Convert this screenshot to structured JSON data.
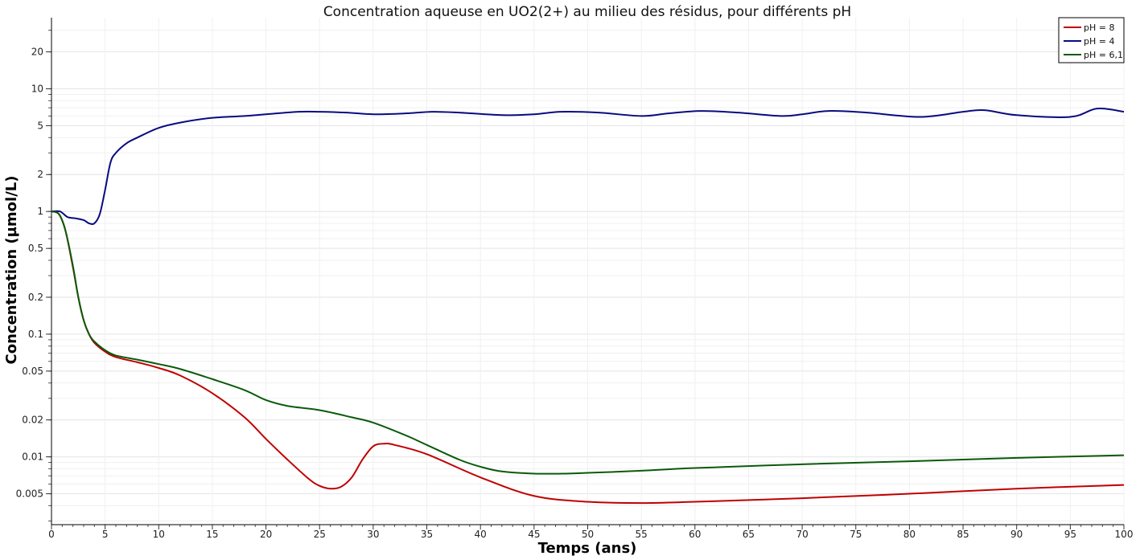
{
  "chart_data": {
    "type": "line",
    "title": "Concentration aqueuse en UO2(2+) au milieu des résidus, pour différents pH",
    "xlabel": "Temps (ans)",
    "ylabel": "Concentration (µmol/L)",
    "xlim": [
      0,
      100
    ],
    "ylim": [
      0.0028,
      38
    ],
    "yscale": "log",
    "grid": true,
    "legend_position": "top-right",
    "x_ticks": [
      0,
      5,
      10,
      15,
      20,
      25,
      30,
      35,
      40,
      45,
      50,
      55,
      60,
      65,
      70,
      75,
      80,
      85,
      90,
      95,
      100
    ],
    "x_tick_labels": [
      "0",
      "5",
      "10",
      "15",
      "20",
      "25",
      "30",
      "35",
      "40",
      "45",
      "50",
      "55",
      "60",
      "65",
      "70",
      "75",
      "80",
      "85",
      "90",
      "95",
      "100"
    ],
    "y_ticks": [
      0.005,
      0.01,
      0.02,
      0.05,
      0.1,
      0.2,
      0.5,
      1,
      2,
      5,
      10,
      20
    ],
    "y_tick_labels": [
      "0.005",
      "0.01",
      "0.02",
      "0.05",
      "0.1",
      "0.2",
      "0.5",
      "1",
      "2",
      "5",
      "10",
      "20"
    ],
    "series": [
      {
        "name": "pH = 8",
        "color": "#c00000",
        "x": [
          0,
          0.7,
          1.3,
          2,
          2.5,
          3,
          3.5,
          4,
          5,
          6,
          8,
          10,
          12,
          15,
          18,
          20,
          22,
          24,
          25,
          26,
          27,
          28,
          29,
          30,
          31,
          32,
          35,
          40,
          45,
          50,
          55,
          60,
          70,
          80,
          90,
          100
        ],
        "y": [
          1.0,
          0.95,
          0.7,
          0.35,
          0.2,
          0.13,
          0.1,
          0.085,
          0.072,
          0.065,
          0.059,
          0.053,
          0.046,
          0.033,
          0.021,
          0.014,
          0.0095,
          0.0066,
          0.0058,
          0.0055,
          0.0057,
          0.0068,
          0.0095,
          0.0122,
          0.0128,
          0.0125,
          0.0105,
          0.0068,
          0.0048,
          0.0043,
          0.0042,
          0.0043,
          0.0046,
          0.005,
          0.0055,
          0.0059
        ]
      },
      {
        "name": "pH = 4",
        "color": "#0a0a80",
        "x": [
          0,
          0.8,
          1.5,
          2.2,
          3,
          3.5,
          4,
          4.5,
          5,
          5.5,
          6,
          7,
          8,
          10,
          12,
          15,
          18,
          20,
          23,
          25,
          27.5,
          30,
          33,
          35.5,
          38,
          42,
          45,
          47.5,
          51,
          55,
          57.5,
          60.5,
          64,
          68,
          70,
          72.5,
          76,
          81,
          85,
          87,
          90,
          95,
          97.5,
          100
        ],
        "y": [
          1.0,
          1.0,
          0.9,
          0.88,
          0.85,
          0.8,
          0.8,
          0.95,
          1.5,
          2.5,
          3.0,
          3.6,
          4.0,
          4.8,
          5.3,
          5.8,
          6.0,
          6.2,
          6.5,
          6.5,
          6.4,
          6.2,
          6.3,
          6.5,
          6.4,
          6.1,
          6.2,
          6.5,
          6.4,
          6.0,
          6.3,
          6.6,
          6.4,
          6.0,
          6.2,
          6.6,
          6.4,
          5.9,
          6.5,
          6.7,
          6.1,
          5.9,
          6.9,
          6.5
        ]
      },
      {
        "name": "pH = 6,1",
        "color": "#0a5a0a",
        "x": [
          0,
          0.7,
          1.3,
          2,
          2.5,
          3,
          3.5,
          4,
          5,
          6,
          8,
          10,
          12,
          15,
          18,
          20,
          22,
          25,
          28,
          30,
          33,
          35,
          38,
          40,
          42,
          45,
          48,
          50,
          55,
          60,
          70,
          80,
          90,
          100
        ],
        "y": [
          1.0,
          0.95,
          0.7,
          0.36,
          0.2,
          0.13,
          0.1,
          0.087,
          0.074,
          0.067,
          0.062,
          0.057,
          0.052,
          0.043,
          0.035,
          0.029,
          0.026,
          0.024,
          0.021,
          0.019,
          0.015,
          0.0125,
          0.0095,
          0.0083,
          0.0076,
          0.0073,
          0.0073,
          0.0074,
          0.0077,
          0.0081,
          0.0087,
          0.0092,
          0.0098,
          0.0103
        ]
      }
    ]
  }
}
